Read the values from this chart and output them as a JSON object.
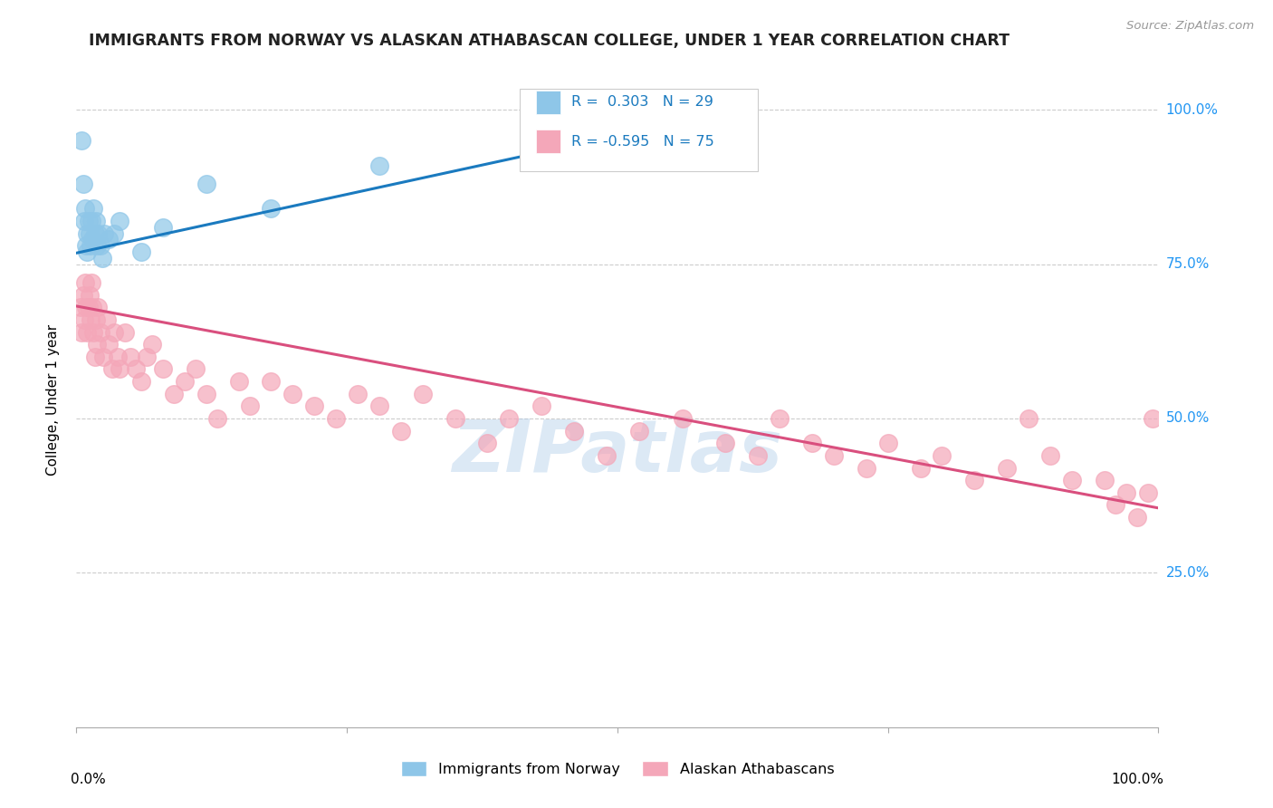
{
  "title": "IMMIGRANTS FROM NORWAY VS ALASKAN ATHABASCAN COLLEGE, UNDER 1 YEAR CORRELATION CHART",
  "source": "Source: ZipAtlas.com",
  "ylabel": "College, Under 1 year",
  "xlim": [
    0.0,
    1.0
  ],
  "ylim": [
    0.0,
    1.06
  ],
  "norway_R": 0.303,
  "norway_N": 29,
  "athabascan_R": -0.595,
  "athabascan_N": 75,
  "norway_color": "#8ec6e8",
  "athabascan_color": "#f4a7b9",
  "norway_line_color": "#1a7abf",
  "athabascan_line_color": "#d94f7e",
  "legend_label_norway": "Immigrants from Norway",
  "legend_label_athabascan": "Alaskan Athabascans",
  "watermark": "ZIPatlas",
  "norway_x": [
    0.005,
    0.006,
    0.007,
    0.008,
    0.009,
    0.01,
    0.01,
    0.011,
    0.012,
    0.013,
    0.014,
    0.015,
    0.016,
    0.017,
    0.018,
    0.019,
    0.02,
    0.022,
    0.024,
    0.026,
    0.03,
    0.035,
    0.04,
    0.06,
    0.08,
    0.12,
    0.18,
    0.28,
    0.42
  ],
  "norway_y": [
    0.95,
    0.88,
    0.82,
    0.84,
    0.78,
    0.8,
    0.77,
    0.82,
    0.8,
    0.78,
    0.82,
    0.79,
    0.84,
    0.8,
    0.82,
    0.78,
    0.8,
    0.78,
    0.76,
    0.8,
    0.79,
    0.8,
    0.82,
    0.77,
    0.81,
    0.88,
    0.84,
    0.91,
    0.94
  ],
  "athabascan_x": [
    0.004,
    0.005,
    0.006,
    0.007,
    0.008,
    0.009,
    0.01,
    0.011,
    0.012,
    0.013,
    0.014,
    0.015,
    0.016,
    0.017,
    0.018,
    0.019,
    0.02,
    0.022,
    0.025,
    0.028,
    0.03,
    0.033,
    0.035,
    0.038,
    0.04,
    0.045,
    0.05,
    0.055,
    0.06,
    0.065,
    0.07,
    0.08,
    0.09,
    0.1,
    0.11,
    0.12,
    0.13,
    0.15,
    0.16,
    0.18,
    0.2,
    0.22,
    0.24,
    0.26,
    0.28,
    0.3,
    0.32,
    0.35,
    0.38,
    0.4,
    0.43,
    0.46,
    0.49,
    0.52,
    0.56,
    0.6,
    0.63,
    0.65,
    0.68,
    0.7,
    0.73,
    0.75,
    0.78,
    0.8,
    0.83,
    0.86,
    0.88,
    0.9,
    0.92,
    0.95,
    0.96,
    0.97,
    0.98,
    0.99,
    0.995
  ],
  "athabascan_y": [
    0.68,
    0.64,
    0.7,
    0.66,
    0.72,
    0.68,
    0.64,
    0.68,
    0.7,
    0.66,
    0.72,
    0.68,
    0.64,
    0.6,
    0.66,
    0.62,
    0.68,
    0.64,
    0.6,
    0.66,
    0.62,
    0.58,
    0.64,
    0.6,
    0.58,
    0.64,
    0.6,
    0.58,
    0.56,
    0.6,
    0.62,
    0.58,
    0.54,
    0.56,
    0.58,
    0.54,
    0.5,
    0.56,
    0.52,
    0.56,
    0.54,
    0.52,
    0.5,
    0.54,
    0.52,
    0.48,
    0.54,
    0.5,
    0.46,
    0.5,
    0.52,
    0.48,
    0.44,
    0.48,
    0.5,
    0.46,
    0.44,
    0.5,
    0.46,
    0.44,
    0.42,
    0.46,
    0.42,
    0.44,
    0.4,
    0.42,
    0.5,
    0.44,
    0.4,
    0.4,
    0.36,
    0.38,
    0.34,
    0.38,
    0.5
  ],
  "norway_line_x0": 0.0,
  "norway_line_y0": 0.768,
  "norway_line_x1": 0.5,
  "norway_line_y1": 0.958,
  "athabascan_line_x0": 0.0,
  "athabascan_line_y0": 0.682,
  "athabascan_line_x1": 1.0,
  "athabascan_line_y1": 0.355
}
